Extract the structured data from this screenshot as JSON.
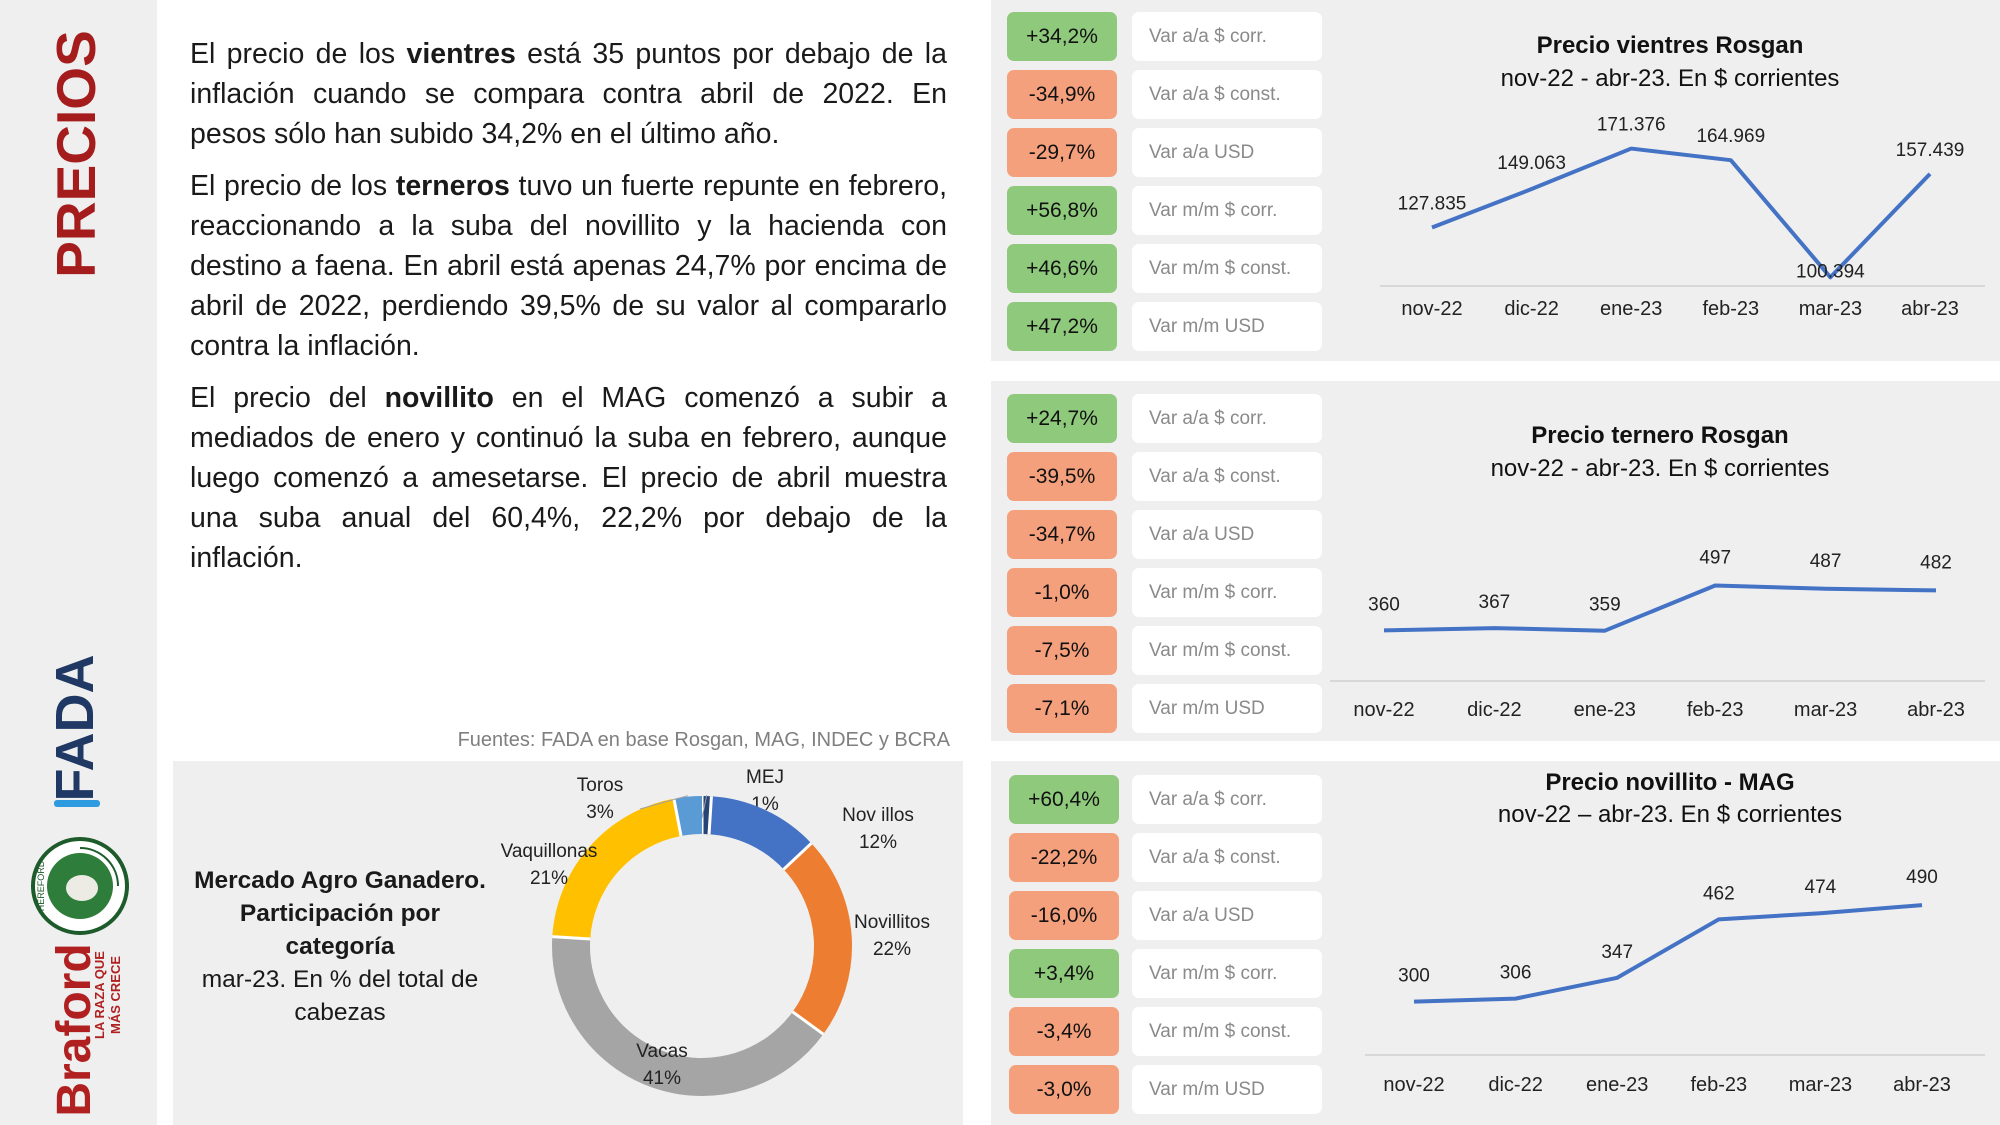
{
  "sidebar": {
    "title": "PRECIOS",
    "fada_logo": "FADA",
    "hereford_logo": "HEREFORD",
    "braford_logo": "Braford",
    "braford_tagline_1": "LA RAZA QUE",
    "braford_tagline_2": "MÁS CRECE"
  },
  "paragraphs": [
    {
      "pre": "El precio de los ",
      "bold": "vientres",
      "post": " está 35 puntos por debajo de la inflación cuando se compara contra abril de 2022. En pesos sólo han subido 34,2% en el último año."
    },
    {
      "pre": "El precio de los ",
      "bold": "terneros",
      "post": " tuvo un fuerte repunte en febrero, reaccionando a la suba del novillito y la hacienda con destino a faena. En abril está apenas 24,7% por encima de abril de 2022, perdiendo 39,5% de su valor al compararlo contra la inflación."
    },
    {
      "pre": "El precio del ",
      "bold": "novillito",
      "post": " en el MAG comenzó a subir a mediados de enero y continuó la suba en febrero, aunque luego comenzó a amesetarse. El precio de abril muestra una suba anual del 60,4%, 22,2% por debajo de la inflación."
    }
  ],
  "source": "Fuentes: FADA en base Rosgan, MAG, INDEC y BCRA",
  "colors": {
    "positive": "#8fc97c",
    "negative": "#f4a07d",
    "line": "#4472c4"
  },
  "panels": [
    {
      "badges": [
        {
          "value": "+34,2%",
          "label": "Var a/a $ corr."
        },
        {
          "value": "-34,9%",
          "label": "Var a/a $ const."
        },
        {
          "value": "-29,7%",
          "label": "Var a/a USD"
        },
        {
          "value": "+56,8%",
          "label": "Var m/m $ corr."
        },
        {
          "value": "+46,6%",
          "label": "Var m/m $ const."
        },
        {
          "value": "+47,2%",
          "label": "Var m/m USD"
        }
      ]
    },
    {
      "badges": [
        {
          "value": "+24,7%",
          "label": "Var a/a $ corr."
        },
        {
          "value": "-39,5%",
          "label": "Var a/a $ const."
        },
        {
          "value": "-34,7%",
          "label": "Var a/a USD"
        },
        {
          "value": "-1,0%",
          "label": "Var m/m $ corr."
        },
        {
          "value": "-7,5%",
          "label": "Var m/m $ const."
        },
        {
          "value": "-7,1%",
          "label": "Var m/m USD"
        }
      ]
    },
    {
      "badges": [
        {
          "value": "+60,4%",
          "label": "Var a/a $ corr."
        },
        {
          "value": "-22,2%",
          "label": "Var a/a $ const."
        },
        {
          "value": "-16,0%",
          "label": "Var a/a USD"
        },
        {
          "value": "+3,4%",
          "label": "Var m/m $ corr."
        },
        {
          "value": "-3,4%",
          "label": "Var m/m $ const."
        },
        {
          "value": "-3,0%",
          "label": "Var m/m USD"
        }
      ]
    }
  ],
  "chart_data": [
    {
      "type": "line",
      "title": "Precio vientres Rosgan",
      "subtitle": "nov-22 - abr-23. En $ corrientes",
      "categories": [
        "nov-22",
        "dic-22",
        "ene-23",
        "feb-23",
        "mar-23",
        "abr-23"
      ],
      "values": [
        127835,
        149063,
        171376,
        164969,
        100394,
        157439
      ],
      "value_labels": [
        "127.835",
        "149.063",
        "171.376",
        "164.969",
        "100.394",
        "157.439"
      ],
      "ylim": [
        100000,
        175000
      ],
      "grid": false,
      "legend": "none"
    },
    {
      "type": "line",
      "title": "Precio ternero Rosgan",
      "subtitle": "nov-22 - abr-23. En $ corrientes",
      "categories": [
        "nov-22",
        "dic-22",
        "ene-23",
        "feb-23",
        "mar-23",
        "abr-23"
      ],
      "values": [
        360,
        367,
        359,
        497,
        487,
        482
      ],
      "value_labels": [
        "360",
        "367",
        "359",
        "497",
        "487",
        "482"
      ],
      "ylim": [
        300,
        520
      ],
      "grid": false,
      "legend": "none"
    },
    {
      "type": "line",
      "title": "Precio novillito - MAG",
      "subtitle": "nov-22 – abr-23. En $ corrientes",
      "categories": [
        "nov-22",
        "dic-22",
        "ene-23",
        "feb-23",
        "mar-23",
        "abr-23"
      ],
      "values": [
        300,
        306,
        347,
        462,
        474,
        490
      ],
      "value_labels": [
        "300",
        "306",
        "347",
        "462",
        "474",
        "490"
      ],
      "ylim": [
        260,
        500
      ],
      "grid": false,
      "legend": "none"
    },
    {
      "type": "pie",
      "title": "Mercado Agro Ganadero. Participación por categoría",
      "subtitle": "mar-23. En % del total de cabezas",
      "slices": [
        {
          "name": "MEJ",
          "value": 1,
          "color": "#264478"
        },
        {
          "name": "Nov illos",
          "value": 12,
          "color": "#4472c4"
        },
        {
          "name": "Novillitos",
          "value": 22,
          "color": "#ed7d31"
        },
        {
          "name": "Vacas",
          "value": 41,
          "color": "#a5a5a5"
        },
        {
          "name": "Vaquillonas",
          "value": 21,
          "color": "#ffc000"
        },
        {
          "name": "Toros",
          "value": 3,
          "color": "#5b9bd5"
        }
      ],
      "slice_labels": [
        "1%",
        "12%",
        "22%",
        "41%",
        "21%",
        "3%"
      ]
    }
  ]
}
